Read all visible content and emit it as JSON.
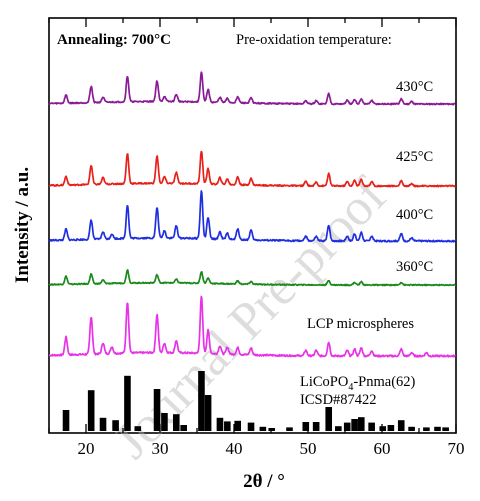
{
  "chart_data": {
    "type": "line",
    "xlabel": "2θ / °",
    "ylabel": "Intensity / a.u.",
    "xlim": [
      15,
      70
    ],
    "x_ticks": [
      20,
      30,
      40,
      50,
      60,
      70
    ],
    "annotations": {
      "annealing": "Annealing: 700°C",
      "preox": "Pre-oxidation temperature:"
    },
    "reference": {
      "label_line1": "LiCoPO",
      "label_sub": "4",
      "label_line1_rest": "-Pnma(62)",
      "label_line2": "ICSD#87422",
      "color": "#000000",
      "sticks": [
        [
          17.3,
          0.35
        ],
        [
          20.7,
          0.68
        ],
        [
          22.3,
          0.22
        ],
        [
          24.0,
          0.18
        ],
        [
          25.6,
          0.92
        ],
        [
          27.0,
          0.08
        ],
        [
          29.6,
          0.7
        ],
        [
          30.6,
          0.3
        ],
        [
          32.2,
          0.28
        ],
        [
          33.2,
          0.1
        ],
        [
          35.6,
          1.0
        ],
        [
          36.5,
          0.6
        ],
        [
          38.1,
          0.22
        ],
        [
          39.1,
          0.16
        ],
        [
          40.5,
          0.17
        ],
        [
          42.3,
          0.14
        ],
        [
          43.9,
          0.07
        ],
        [
          45.1,
          0.05
        ],
        [
          47.5,
          0.06
        ],
        [
          49.7,
          0.15
        ],
        [
          51.1,
          0.15
        ],
        [
          52.8,
          0.4
        ],
        [
          54.1,
          0.08
        ],
        [
          55.3,
          0.14
        ],
        [
          56.3,
          0.2
        ],
        [
          57.2,
          0.23
        ],
        [
          58.6,
          0.14
        ],
        [
          60.1,
          0.08
        ],
        [
          61.2,
          0.1
        ],
        [
          62.6,
          0.18
        ],
        [
          64.0,
          0.07
        ],
        [
          66.0,
          0.06
        ],
        [
          67.5,
          0.07
        ],
        [
          68.6,
          0.06
        ]
      ]
    },
    "series": [
      {
        "name": "LCP microspheres",
        "color": "#e832e8",
        "baseline": 0.82,
        "peaks": [
          [
            17.3,
            0.26
          ],
          [
            20.7,
            0.55
          ],
          [
            22.3,
            0.16
          ],
          [
            23.5,
            0.1
          ],
          [
            25.6,
            0.75
          ],
          [
            29.6,
            0.56
          ],
          [
            30.6,
            0.14
          ],
          [
            32.2,
            0.18
          ],
          [
            35.6,
            0.83
          ],
          [
            36.5,
            0.34
          ],
          [
            38.1,
            0.12
          ],
          [
            39.1,
            0.1
          ],
          [
            40.5,
            0.1
          ],
          [
            42.3,
            0.1
          ],
          [
            49.7,
            0.08
          ],
          [
            51.1,
            0.08
          ],
          [
            52.8,
            0.2
          ],
          [
            55.3,
            0.08
          ],
          [
            56.3,
            0.1
          ],
          [
            57.2,
            0.12
          ],
          [
            58.6,
            0.08
          ],
          [
            62.6,
            0.1
          ],
          [
            64.0,
            0.05
          ],
          [
            66.0,
            0.05
          ]
        ]
      },
      {
        "name": "360°C",
        "color": "#1a8a1a",
        "baseline": 0.86,
        "peaks": [
          [
            17.3,
            0.18
          ],
          [
            20.7,
            0.22
          ],
          [
            22.3,
            0.08
          ],
          [
            25.6,
            0.3
          ],
          [
            29.6,
            0.18
          ],
          [
            32.2,
            0.08
          ],
          [
            35.6,
            0.26
          ],
          [
            36.5,
            0.12
          ],
          [
            40.5,
            0.07
          ],
          [
            42.3,
            0.06
          ],
          [
            52.8,
            0.1
          ],
          [
            56.3,
            0.06
          ],
          [
            57.2,
            0.07
          ],
          [
            62.6,
            0.06
          ]
        ]
      },
      {
        "name": "400°C",
        "color": "#1f2fe0",
        "baseline": 0.82,
        "peaks": [
          [
            17.3,
            0.18
          ],
          [
            20.7,
            0.32
          ],
          [
            22.3,
            0.12
          ],
          [
            23.5,
            0.08
          ],
          [
            25.6,
            0.55
          ],
          [
            29.6,
            0.5
          ],
          [
            30.6,
            0.12
          ],
          [
            32.2,
            0.2
          ],
          [
            35.6,
            0.78
          ],
          [
            36.5,
            0.35
          ],
          [
            38.1,
            0.12
          ],
          [
            39.1,
            0.1
          ],
          [
            40.5,
            0.18
          ],
          [
            42.3,
            0.16
          ],
          [
            49.7,
            0.07
          ],
          [
            51.1,
            0.07
          ],
          [
            52.8,
            0.26
          ],
          [
            55.3,
            0.08
          ],
          [
            56.3,
            0.12
          ],
          [
            57.2,
            0.14
          ],
          [
            58.6,
            0.08
          ],
          [
            62.6,
            0.12
          ],
          [
            64.0,
            0.05
          ]
        ]
      },
      {
        "name": "425°C",
        "color": "#e8201a",
        "baseline": 0.84,
        "peaks": [
          [
            17.3,
            0.16
          ],
          [
            20.7,
            0.35
          ],
          [
            22.3,
            0.12
          ],
          [
            25.6,
            0.55
          ],
          [
            29.6,
            0.5
          ],
          [
            30.6,
            0.12
          ],
          [
            32.2,
            0.2
          ],
          [
            35.6,
            0.6
          ],
          [
            36.5,
            0.28
          ],
          [
            38.1,
            0.12
          ],
          [
            39.1,
            0.1
          ],
          [
            40.5,
            0.14
          ],
          [
            42.3,
            0.12
          ],
          [
            49.7,
            0.08
          ],
          [
            51.1,
            0.07
          ],
          [
            52.8,
            0.22
          ],
          [
            55.3,
            0.08
          ],
          [
            56.3,
            0.1
          ],
          [
            57.2,
            0.12
          ],
          [
            58.6,
            0.08
          ],
          [
            62.6,
            0.1
          ],
          [
            64.0,
            0.05
          ]
        ]
      },
      {
        "name": "430°C",
        "color": "#8a1a96",
        "baseline": 0.82,
        "peaks": [
          [
            17.3,
            0.16
          ],
          [
            20.7,
            0.32
          ],
          [
            22.3,
            0.1
          ],
          [
            25.6,
            0.5
          ],
          [
            29.6,
            0.4
          ],
          [
            30.6,
            0.1
          ],
          [
            32.2,
            0.14
          ],
          [
            35.6,
            0.58
          ],
          [
            36.5,
            0.25
          ],
          [
            38.1,
            0.1
          ],
          [
            39.1,
            0.08
          ],
          [
            40.5,
            0.12
          ],
          [
            42.3,
            0.1
          ],
          [
            49.7,
            0.06
          ],
          [
            51.1,
            0.06
          ],
          [
            52.8,
            0.2
          ],
          [
            55.3,
            0.07
          ],
          [
            56.3,
            0.08
          ],
          [
            57.2,
            0.1
          ],
          [
            58.6,
            0.07
          ],
          [
            62.6,
            0.1
          ],
          [
            64.0,
            0.05
          ]
        ]
      }
    ]
  },
  "watermark": {
    "text": "Journal Pre-proof",
    "color": "#b4b4b4"
  }
}
